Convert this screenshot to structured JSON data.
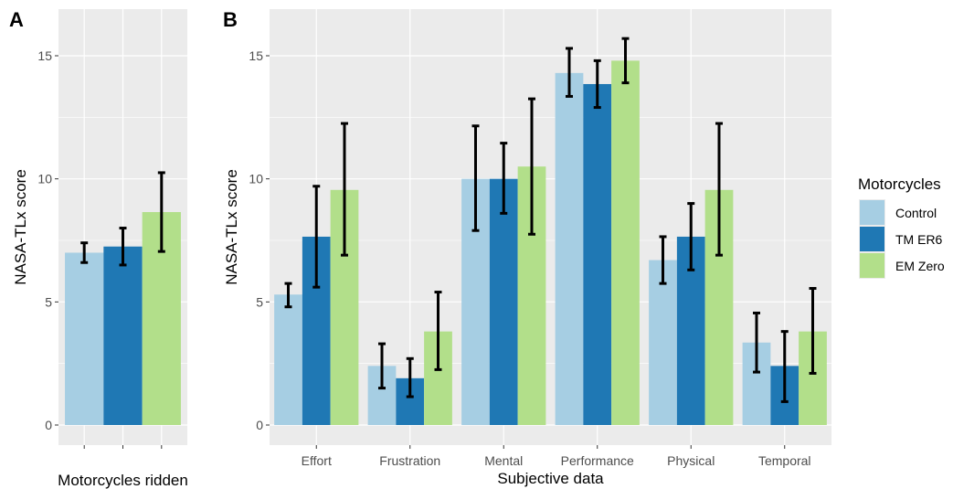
{
  "legend": {
    "title": "Motorcycles",
    "items": [
      {
        "label": "Control",
        "color": "#a6cee3"
      },
      {
        "label": "TM ER6",
        "color": "#1f78b4"
      },
      {
        "label": "EM Zero",
        "color": "#b2df8a"
      }
    ]
  },
  "chart_data": [
    {
      "panel": "A",
      "type": "bar",
      "xlabel": "Motorcycles ridden",
      "ylabel": "NASA-TLx score",
      "ylim": [
        0,
        16
      ],
      "yticks": [
        0,
        5,
        10,
        15
      ],
      "categories": [
        ""
      ],
      "series": [
        {
          "name": "Control",
          "values": [
            7.0
          ],
          "error_low": [
            6.6
          ],
          "error_high": [
            7.4
          ]
        },
        {
          "name": "TM ER6",
          "values": [
            7.25
          ],
          "error_low": [
            6.5
          ],
          "error_high": [
            8.0
          ]
        },
        {
          "name": "EM Zero",
          "values": [
            8.65
          ],
          "error_low": [
            7.05
          ],
          "error_high": [
            10.25
          ]
        }
      ],
      "grid": true
    },
    {
      "panel": "B",
      "type": "bar",
      "xlabel": "Subjective data",
      "ylabel": "NASA-TLx score",
      "ylim": [
        0,
        16
      ],
      "yticks": [
        0,
        5,
        10,
        15
      ],
      "categories": [
        "Effort",
        "Frustration",
        "Mental",
        "Performance",
        "Physical",
        "Temporal"
      ],
      "series": [
        {
          "name": "Control",
          "values": [
            5.3,
            2.4,
            10.0,
            14.3,
            6.7,
            3.35
          ],
          "error_low": [
            4.8,
            1.5,
            7.9,
            13.35,
            5.75,
            2.15
          ],
          "error_high": [
            5.75,
            3.3,
            12.15,
            15.3,
            7.65,
            4.55
          ]
        },
        {
          "name": "TM ER6",
          "values": [
            7.65,
            1.9,
            10.0,
            13.85,
            7.65,
            2.4
          ],
          "error_low": [
            5.6,
            1.15,
            8.6,
            12.9,
            6.3,
            0.95
          ],
          "error_high": [
            9.7,
            2.7,
            11.45,
            14.8,
            9.0,
            3.8
          ]
        },
        {
          "name": "EM Zero",
          "values": [
            9.55,
            3.8,
            10.5,
            14.8,
            9.55,
            3.8
          ],
          "error_low": [
            6.9,
            2.25,
            7.75,
            13.9,
            6.9,
            2.1
          ],
          "error_high": [
            12.25,
            5.4,
            13.25,
            15.7,
            12.25,
            5.55
          ]
        }
      ],
      "grid": true
    }
  ]
}
